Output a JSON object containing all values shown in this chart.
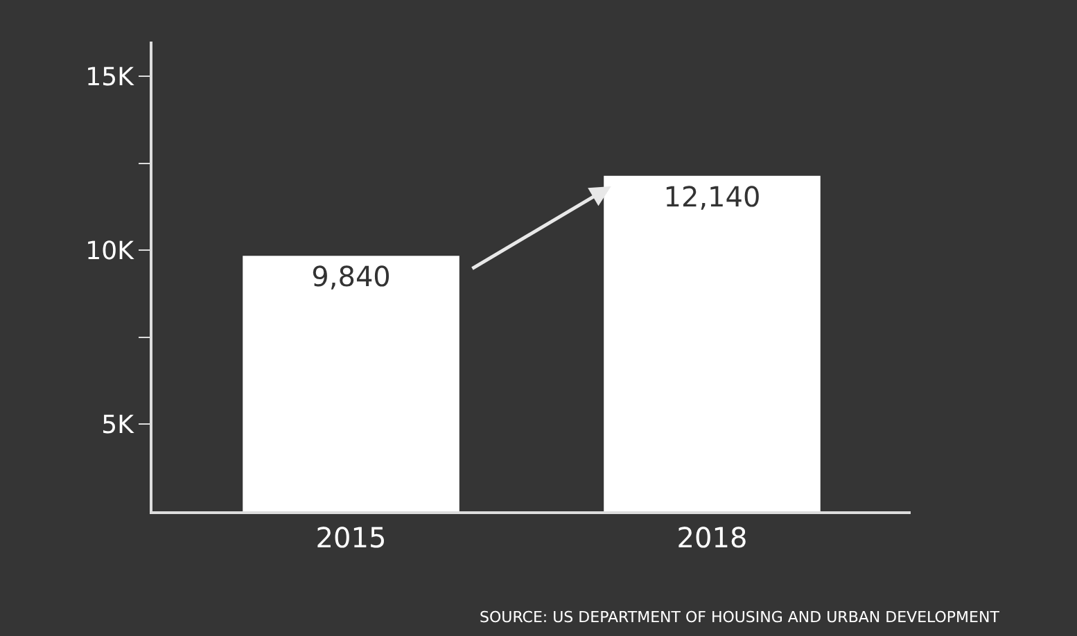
{
  "chart_data": {
    "type": "bar",
    "categories": [
      "2015",
      "2018"
    ],
    "series": [
      {
        "color": "#ffffff",
        "values": [
          9840,
          12140
        ]
      }
    ],
    "value_labels": [
      "9,840",
      "12,140"
    ],
    "ylim": [
      2500,
      16000
    ],
    "yticks": [
      {
        "value": 5000,
        "label": "5K"
      },
      {
        "value": 7500,
        "label": null
      },
      {
        "value": 10000,
        "label": "10K"
      },
      {
        "value": 12500,
        "label": null
      },
      {
        "value": 15000,
        "label": "15K"
      }
    ],
    "grid": false,
    "annotations": [
      "SOURCE: US DEPARTMENT OF HOUSING AND URBAN DEVELOPMENT"
    ]
  }
}
